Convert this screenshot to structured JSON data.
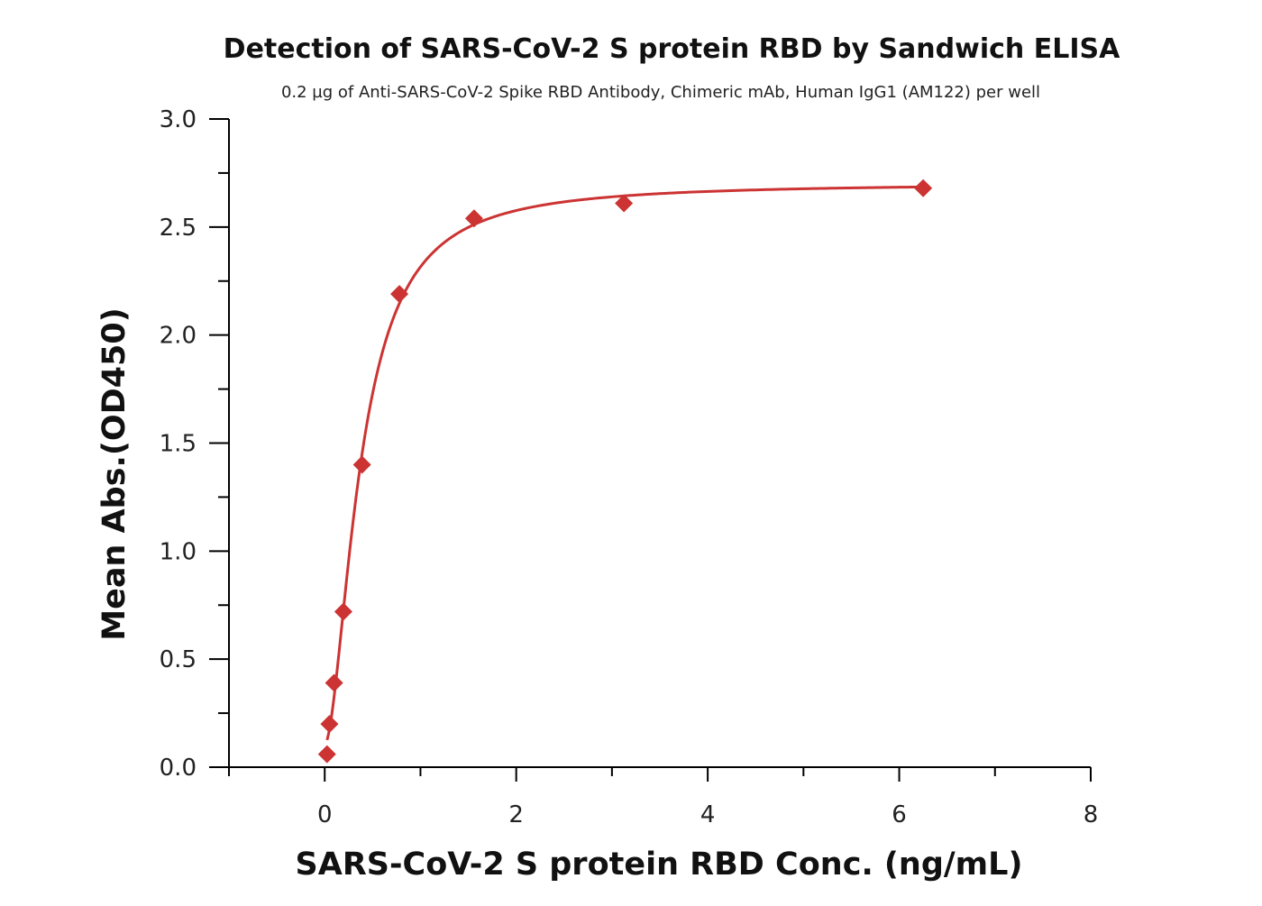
{
  "colors": {
    "series": "#cc3333",
    "axis": "#000000",
    "background": "#ffffff"
  },
  "chart_data": {
    "type": "scatter",
    "title": "Detection of SARS-CoV-2 S protein RBD by Sandwich ELISA",
    "subtitle": "0.2 µg of Anti-SARS-CoV-2 Spike RBD Antibody, Chimeric mAb, Human IgG1 (AM122)  per well",
    "xlabel": "SARS-CoV-2 S protein RBD Conc. (ng/mL)",
    "ylabel": "Mean Abs.(OD450)",
    "xlim": [
      -1,
      8
    ],
    "ylim": [
      0,
      3
    ],
    "xticks": [
      0,
      2,
      4,
      6,
      8
    ],
    "xtick_labels": [
      "0",
      "2",
      "4",
      "6",
      "8"
    ],
    "yticks": [
      0,
      0.5,
      1.0,
      1.5,
      2.0,
      2.5,
      3.0
    ],
    "ytick_labels": [
      "0.0",
      "0.5",
      "1.0",
      "1.5",
      "2.0",
      "2.5",
      "3.0"
    ],
    "grid": false,
    "legend": "none",
    "marker": "diamond",
    "fit": "four-parameter logistic curve",
    "series": [
      {
        "x": [
          0.024,
          0.049,
          0.098,
          0.195,
          0.39,
          0.78,
          1.56,
          3.125,
          6.25
        ],
        "y": [
          0.06,
          0.2,
          0.39,
          0.72,
          1.4,
          2.19,
          2.54,
          2.61,
          2.68
        ]
      }
    ]
  }
}
